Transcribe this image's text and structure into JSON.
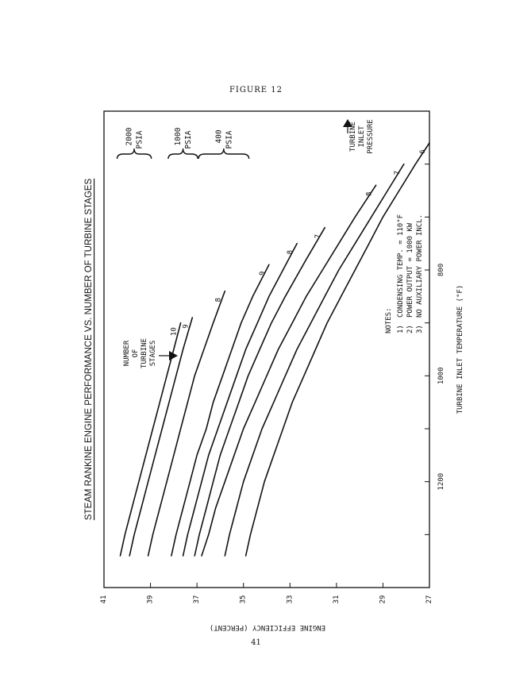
{
  "figure_label": "FIGURE 12",
  "page_number": "41",
  "chart_data": {
    "type": "line",
    "title": "STEAM RANKINE ENGINE PERFORMANCE VS. NUMBER OF TURBINE STAGES",
    "xlabel": "TURBINE INLET TEMPERATURE (°F)",
    "ylabel": "ENGINE EFFICIENCY (PERCENT)",
    "xlim": [
      500,
      1400
    ],
    "ylim": [
      27,
      41
    ],
    "x_ticks": [
      600,
      700,
      800,
      900,
      1000,
      1100,
      1200,
      1300
    ],
    "x_tick_labels": [
      {
        "value": 800,
        "label": "800"
      },
      {
        "value": 1000,
        "label": "1000"
      },
      {
        "value": 1200,
        "label": "1200"
      }
    ],
    "y_ticks": [
      27,
      29,
      31,
      33,
      35,
      37,
      39,
      41
    ],
    "y_tick_labels": [
      "27",
      "29",
      "31",
      "33",
      "35",
      "37",
      "39",
      "41"
    ],
    "grid": false,
    "stages_legend": [
      "NUMBER",
      "OF",
      "TURBINE",
      "STAGES"
    ],
    "pressure_legend": [
      "TURBINE",
      "INLET",
      "PRESSURE"
    ],
    "pressure_groups": [
      {
        "label": "2000",
        "unit": "PSIA",
        "series": [
          "10",
          "9",
          "8"
        ]
      },
      {
        "label": "1000",
        "unit": "PSIA",
        "series": [
          "9",
          "8",
          "7"
        ]
      },
      {
        "label": "400",
        "unit": "PSIA",
        "series": [
          "8",
          "7",
          "6"
        ]
      }
    ],
    "series": [
      {
        "pressure": "2000",
        "stages": "10",
        "x": [
          900,
          950,
          1000,
          1050,
          1100,
          1150,
          1200,
          1250,
          1300,
          1340
        ],
        "y": [
          37.7,
          38.0,
          38.3,
          38.6,
          38.9,
          39.2,
          39.5,
          39.8,
          40.1,
          40.3
        ]
      },
      {
        "pressure": "2000",
        "stages": "9",
        "x": [
          890,
          950,
          1000,
          1050,
          1100,
          1150,
          1200,
          1250,
          1300,
          1340
        ],
        "y": [
          37.2,
          37.6,
          37.9,
          38.2,
          38.5,
          38.8,
          39.1,
          39.4,
          39.7,
          39.9
        ]
      },
      {
        "pressure": "2000",
        "stages": "8",
        "x": [
          840,
          900,
          950,
          1000,
          1050,
          1100,
          1150,
          1200,
          1250,
          1300,
          1340
        ],
        "y": [
          35.8,
          36.3,
          36.7,
          37.1,
          37.4,
          37.7,
          38.0,
          38.3,
          38.6,
          38.9,
          39.1
        ]
      },
      {
        "pressure": "1000",
        "stages": "9",
        "x": [
          790,
          850,
          900,
          950,
          1000,
          1050,
          1100,
          1150,
          1200,
          1250,
          1300,
          1340
        ],
        "y": [
          33.9,
          34.6,
          35.1,
          35.5,
          35.9,
          36.3,
          36.6,
          37.0,
          37.3,
          37.6,
          37.9,
          38.1
        ]
      },
      {
        "pressure": "1000",
        "stages": "8",
        "x": [
          750,
          800,
          850,
          900,
          950,
          1000,
          1050,
          1100,
          1150,
          1200,
          1250,
          1300,
          1340
        ],
        "y": [
          32.7,
          33.3,
          33.9,
          34.4,
          34.9,
          35.3,
          35.7,
          36.1,
          36.5,
          36.8,
          37.1,
          37.4,
          37.6
        ]
      },
      {
        "pressure": "1000",
        "stages": "7",
        "x": [
          720,
          780,
          850,
          900,
          950,
          1000,
          1050,
          1100,
          1150,
          1200,
          1250,
          1300,
          1340
        ],
        "y": [
          31.5,
          32.3,
          33.2,
          33.8,
          34.3,
          34.8,
          35.2,
          35.6,
          36.0,
          36.3,
          36.6,
          36.9,
          37.1
        ]
      },
      {
        "pressure": "400",
        "stages": "8",
        "x": [
          640,
          700,
          750,
          800,
          850,
          900,
          950,
          1000,
          1050,
          1100,
          1150,
          1200,
          1250,
          1300,
          1340
        ],
        "y": [
          29.3,
          30.2,
          30.9,
          31.6,
          32.3,
          32.9,
          33.5,
          34.0,
          34.5,
          35.0,
          35.4,
          35.8,
          36.2,
          36.5,
          36.8
        ]
      },
      {
        "pressure": "400",
        "stages": "7",
        "x": [
          600,
          650,
          700,
          750,
          800,
          850,
          900,
          950,
          1000,
          1050,
          1100,
          1150,
          1200,
          1250,
          1300,
          1340
        ],
        "y": [
          28.1,
          28.8,
          29.5,
          30.2,
          30.9,
          31.5,
          32.1,
          32.7,
          33.2,
          33.7,
          34.2,
          34.6,
          35.0,
          35.3,
          35.6,
          35.8
        ]
      },
      {
        "pressure": "400",
        "stages": "6",
        "x": [
          560,
          600,
          650,
          700,
          750,
          800,
          850,
          900,
          950,
          1000,
          1050,
          1100,
          1150,
          1200,
          1250,
          1300,
          1340
        ],
        "y": [
          27.0,
          27.6,
          28.3,
          29.0,
          29.6,
          30.2,
          30.8,
          31.4,
          31.9,
          32.4,
          32.9,
          33.3,
          33.7,
          34.1,
          34.4,
          34.7,
          34.9
        ]
      }
    ],
    "notes_heading": "NOTES:",
    "notes": [
      {
        "num": "1)",
        "text": "CONDENSING TEMP. = 110°F"
      },
      {
        "num": "2)",
        "text": "POWER OUTPUT = 1000 KW"
      },
      {
        "num": "3)",
        "text": "NO AUXILIARY POWER INCL."
      }
    ]
  }
}
